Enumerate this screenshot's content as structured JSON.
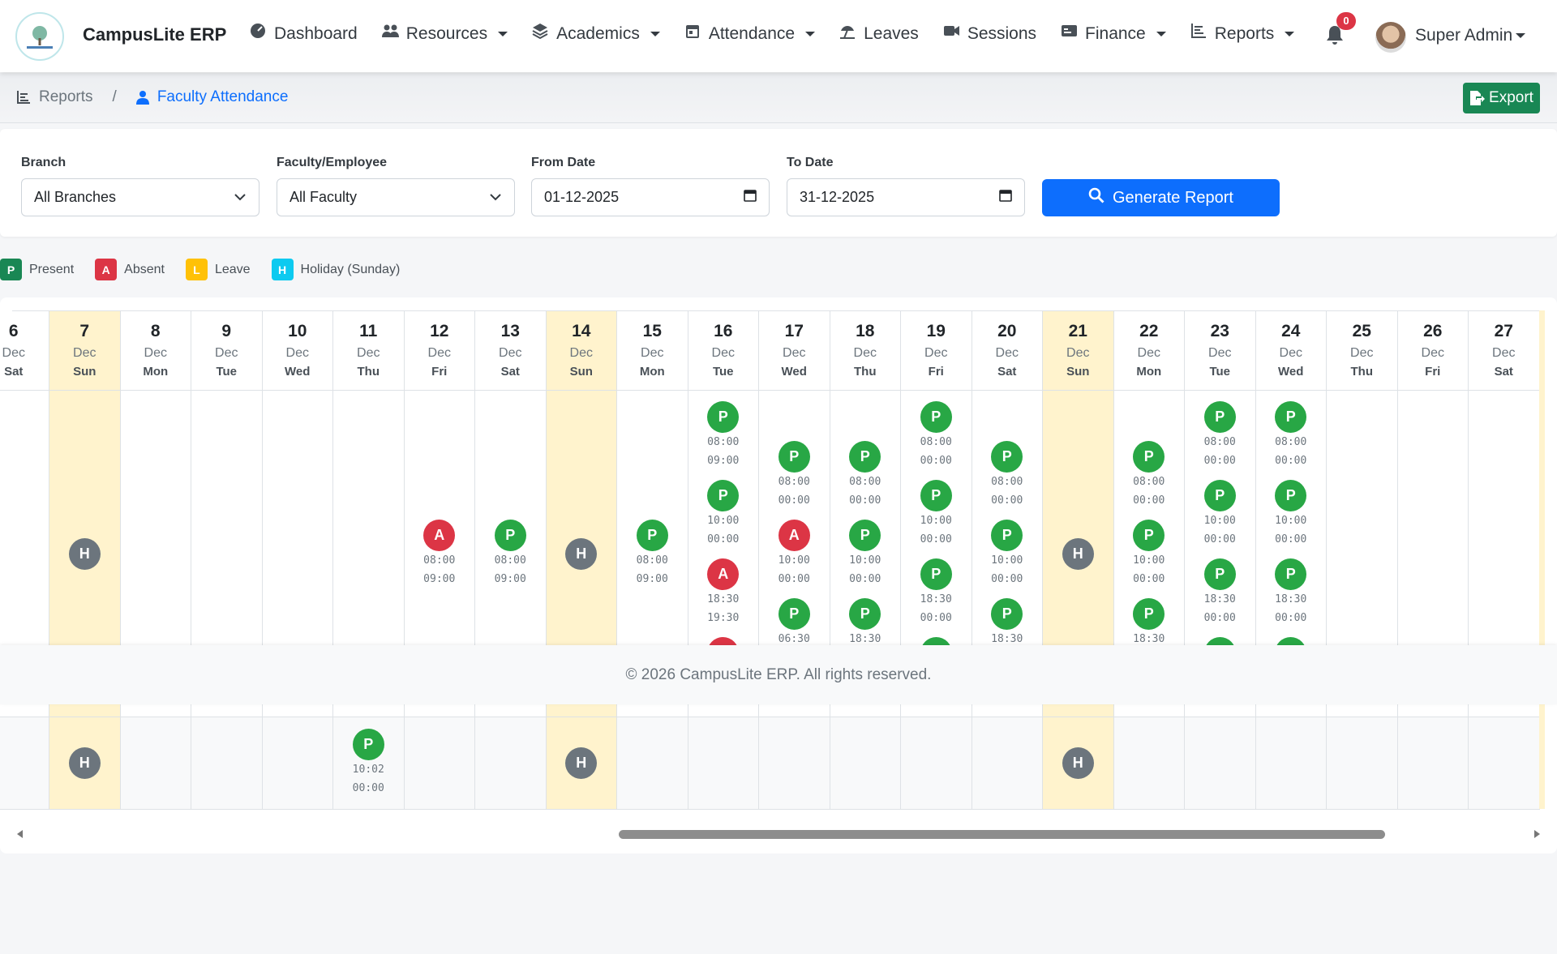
{
  "nav": {
    "brand": "CampusLite ERP",
    "items": [
      {
        "label": "Dashboard",
        "dropdown": false
      },
      {
        "label": "Resources",
        "dropdown": true
      },
      {
        "label": "Academics",
        "dropdown": true
      },
      {
        "label": "Attendance",
        "dropdown": true
      },
      {
        "label": "Leaves",
        "dropdown": false
      },
      {
        "label": "Sessions",
        "dropdown": false
      },
      {
        "label": "Finance",
        "dropdown": true
      },
      {
        "label": "Reports",
        "dropdown": true
      }
    ],
    "notifications": 0,
    "user": "Super Admin"
  },
  "breadcrumb": [
    "Reports",
    "Faculty Attendance"
  ],
  "export": "Export",
  "filters": [
    {
      "label": "Branch",
      "value": "All Branches",
      "kind": "select"
    },
    {
      "label": "Faculty/Employee",
      "value": "All Faculty",
      "kind": "select"
    },
    {
      "label": "From Date",
      "value": "01-12-2025",
      "kind": "date"
    },
    {
      "label": "To Date",
      "value": "31-12-2025",
      "kind": "date"
    }
  ],
  "generate": "Generate Report",
  "legend": [
    {
      "code": "P",
      "label": "Present",
      "color": "#198754"
    },
    {
      "code": "A",
      "label": "Absent",
      "color": "#dc3545"
    },
    {
      "code": "L",
      "label": "Leave",
      "color": "#ffc107"
    },
    {
      "code": "H",
      "label": "Holiday (Sunday)",
      "color": "#0dcaf0"
    }
  ],
  "status_colors": {
    "P": "#28a745",
    "A": "#dc3545",
    "H": "#6c757d"
  },
  "days": [
    {
      "day": 6,
      "month": "Dec",
      "weekday": "Sat",
      "holiday": false
    },
    {
      "day": 7,
      "month": "Dec",
      "weekday": "Sun",
      "holiday": true
    },
    {
      "day": 8,
      "month": "Dec",
      "weekday": "Mon",
      "holiday": false
    },
    {
      "day": 9,
      "month": "Dec",
      "weekday": "Tue",
      "holiday": false
    },
    {
      "day": 10,
      "month": "Dec",
      "weekday": "Wed",
      "holiday": false
    },
    {
      "day": 11,
      "month": "Dec",
      "weekday": "Thu",
      "holiday": false
    },
    {
      "day": 12,
      "month": "Dec",
      "weekday": "Fri",
      "holiday": false
    },
    {
      "day": 13,
      "month": "Dec",
      "weekday": "Sat",
      "holiday": false
    },
    {
      "day": 14,
      "month": "Dec",
      "weekday": "Sun",
      "holiday": true
    },
    {
      "day": 15,
      "month": "Dec",
      "weekday": "Mon",
      "holiday": false
    },
    {
      "day": 16,
      "month": "Dec",
      "weekday": "Tue",
      "holiday": false
    },
    {
      "day": 17,
      "month": "Dec",
      "weekday": "Wed",
      "holiday": false
    },
    {
      "day": 18,
      "month": "Dec",
      "weekday": "Thu",
      "holiday": false
    },
    {
      "day": 19,
      "month": "Dec",
      "weekday": "Fri",
      "holiday": false
    },
    {
      "day": 20,
      "month": "Dec",
      "weekday": "Sat",
      "holiday": false
    },
    {
      "day": 21,
      "month": "Dec",
      "weekday": "Sun",
      "holiday": true
    },
    {
      "day": 22,
      "month": "Dec",
      "weekday": "Mon",
      "holiday": false
    },
    {
      "day": 23,
      "month": "Dec",
      "weekday": "Tue",
      "holiday": false
    },
    {
      "day": 24,
      "month": "Dec",
      "weekday": "Wed",
      "holiday": false
    },
    {
      "day": 25,
      "month": "Dec",
      "weekday": "Thu",
      "holiday": false
    },
    {
      "day": 26,
      "month": "Dec",
      "weekday": "Fri",
      "holiday": false
    },
    {
      "day": 27,
      "month": "Dec",
      "weekday": "Sat",
      "holiday": false
    }
  ],
  "rows": [
    {
      "cells": [
        [],
        [
          {
            "status": "H",
            "times": []
          }
        ],
        [],
        [],
        [],
        [],
        [
          {
            "status": "A",
            "times": [
              "08:00",
              "09:00"
            ]
          }
        ],
        [
          {
            "status": "P",
            "times": [
              "08:00",
              "09:00"
            ]
          }
        ],
        [
          {
            "status": "H",
            "times": []
          }
        ],
        [
          {
            "status": "P",
            "times": [
              "08:00",
              "09:00"
            ]
          }
        ],
        [
          {
            "status": "P",
            "times": [
              "08:00",
              "09:00"
            ]
          },
          {
            "status": "P",
            "times": [
              "10:00",
              "00:00"
            ]
          },
          {
            "status": "A",
            "times": [
              "18:30",
              "19:30"
            ]
          },
          {
            "status": "A",
            "times": []
          }
        ],
        [
          {
            "status": "P",
            "times": [
              "08:00",
              "00:00"
            ]
          },
          {
            "status": "A",
            "times": [
              "10:00",
              "00:00"
            ]
          },
          {
            "status": "P",
            "times": [
              "06:30"
            ]
          }
        ],
        [
          {
            "status": "P",
            "times": [
              "08:00",
              "00:00"
            ]
          },
          {
            "status": "P",
            "times": [
              "10:00",
              "00:00"
            ]
          },
          {
            "status": "P",
            "times": [
              "18:30"
            ]
          }
        ],
        [
          {
            "status": "P",
            "times": [
              "08:00",
              "00:00"
            ]
          },
          {
            "status": "P",
            "times": [
              "10:00",
              "00:00"
            ]
          },
          {
            "status": "P",
            "times": [
              "18:30",
              "00:00"
            ]
          },
          {
            "status": "P",
            "times": []
          }
        ],
        [
          {
            "status": "P",
            "times": [
              "08:00",
              "00:00"
            ]
          },
          {
            "status": "P",
            "times": [
              "10:00",
              "00:00"
            ]
          },
          {
            "status": "P",
            "times": [
              "18:30"
            ]
          }
        ],
        [
          {
            "status": "H",
            "times": []
          }
        ],
        [
          {
            "status": "P",
            "times": [
              "08:00",
              "00:00"
            ]
          },
          {
            "status": "P",
            "times": [
              "10:00",
              "00:00"
            ]
          },
          {
            "status": "P",
            "times": [
              "18:30"
            ]
          }
        ],
        [
          {
            "status": "P",
            "times": [
              "08:00",
              "00:00"
            ]
          },
          {
            "status": "P",
            "times": [
              "10:00",
              "00:00"
            ]
          },
          {
            "status": "P",
            "times": [
              "18:30",
              "00:00"
            ]
          },
          {
            "status": "P",
            "times": []
          }
        ],
        [
          {
            "status": "P",
            "times": [
              "08:00",
              "00:00"
            ]
          },
          {
            "status": "P",
            "times": [
              "10:00",
              "00:00"
            ]
          },
          {
            "status": "P",
            "times": [
              "18:30",
              "00:00"
            ]
          },
          {
            "status": "P",
            "times": []
          }
        ],
        [],
        [],
        []
      ]
    },
    {
      "cells": [
        [],
        [
          {
            "status": "H",
            "times": []
          }
        ],
        [],
        [],
        [],
        [
          {
            "status": "P",
            "times": [
              "10:02",
              "00:00"
            ]
          }
        ],
        [],
        [],
        [
          {
            "status": "H",
            "times": []
          }
        ],
        [],
        [],
        [],
        [],
        [],
        [],
        [
          {
            "status": "H",
            "times": []
          }
        ],
        [],
        [],
        [],
        [],
        [],
        []
      ]
    }
  ],
  "footer": "© 2026 CampusLite ERP. All rights reserved."
}
